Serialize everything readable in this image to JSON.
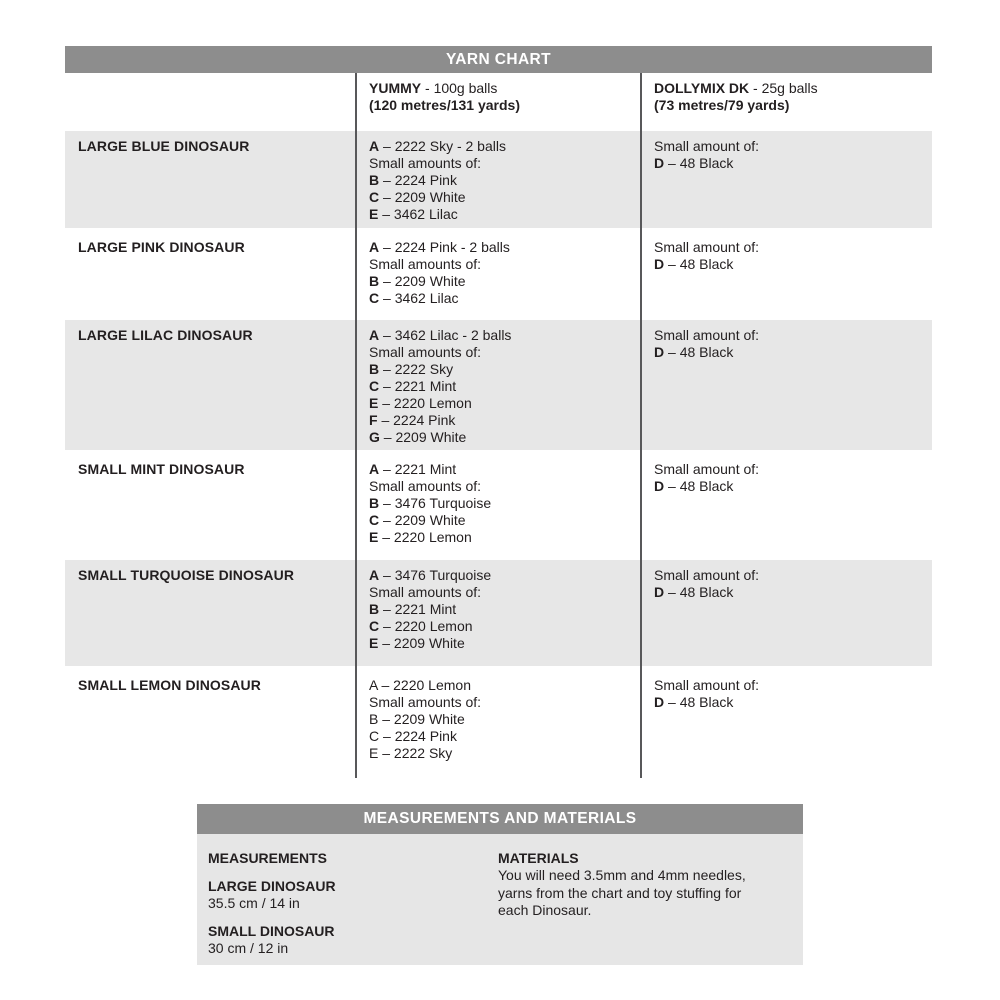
{
  "yarn_chart": {
    "title": "YARN CHART",
    "columns": [
      {
        "brand": "YUMMY",
        "detail": " - 100g balls",
        "meterage": "(120 metres/131 yards)"
      },
      {
        "brand": "DOLLYMIX DK",
        "detail": " - 25g balls",
        "meterage": "(73 metres/79 yards)"
      }
    ],
    "rows": [
      {
        "name": "LARGE BLUE DINOSAUR",
        "yummy": [
          {
            "letter": "A",
            "rest": " – 2222 Sky - 2 balls"
          },
          {
            "letter": "",
            "rest": "Small amounts of:"
          },
          {
            "letter": "B",
            "rest": " – 2224 Pink"
          },
          {
            "letter": "C",
            "rest": " – 2209 White"
          },
          {
            "letter": "E",
            "rest": " – 3462 Lilac"
          }
        ],
        "dollymix": [
          {
            "letter": "",
            "rest": "Small amount of:"
          },
          {
            "letter": "D",
            "rest": " – 48 Black"
          }
        ]
      },
      {
        "name": "LARGE PINK DINOSAUR",
        "yummy": [
          {
            "letter": "A",
            "rest": " – 2224 Pink - 2 balls"
          },
          {
            "letter": "",
            "rest": "Small amounts of:"
          },
          {
            "letter": "B",
            "rest": " – 2209 White"
          },
          {
            "letter": "C",
            "rest": " – 3462 Lilac"
          }
        ],
        "dollymix": [
          {
            "letter": "",
            "rest": "Small amount of:"
          },
          {
            "letter": "D",
            "rest": " – 48 Black"
          }
        ]
      },
      {
        "name": "LARGE LILAC DINOSAUR",
        "yummy": [
          {
            "letter": "A",
            "rest": " – 3462 Lilac - 2 balls"
          },
          {
            "letter": "",
            "rest": "Small amounts of:"
          },
          {
            "letter": "B",
            "rest": " – 2222 Sky"
          },
          {
            "letter": "C",
            "rest": " – 2221 Mint"
          },
          {
            "letter": "E",
            "rest": " – 2220 Lemon"
          },
          {
            "letter": "F",
            "rest": " – 2224 Pink"
          },
          {
            "letter": "G",
            "rest": " – 2209 White"
          }
        ],
        "dollymix": [
          {
            "letter": "",
            "rest": "Small amount of:"
          },
          {
            "letter": "D",
            "rest": " – 48 Black"
          }
        ]
      },
      {
        "name": "SMALL MINT DINOSAUR",
        "yummy": [
          {
            "letter": "A",
            "rest": " – 2221 Mint"
          },
          {
            "letter": "",
            "rest": "Small amounts of:"
          },
          {
            "letter": "B",
            "rest": " – 3476 Turquoise"
          },
          {
            "letter": "C",
            "rest": " – 2209 White"
          },
          {
            "letter": "E",
            "rest": " – 2220 Lemon"
          }
        ],
        "dollymix": [
          {
            "letter": "",
            "rest": "Small amount of:"
          },
          {
            "letter": "D",
            "rest": " – 48 Black"
          }
        ]
      },
      {
        "name": "SMALL TURQUOISE DINOSAUR",
        "yummy": [
          {
            "letter": "A",
            "rest": " – 3476 Turquoise"
          },
          {
            "letter": "",
            "rest": "Small amounts of:"
          },
          {
            "letter": "B",
            "rest": " – 2221 Mint"
          },
          {
            "letter": "C",
            "rest": " – 2220 Lemon"
          },
          {
            "letter": "E",
            "rest": " – 2209 White"
          }
        ],
        "dollymix": [
          {
            "letter": "",
            "rest": "Small amount of:"
          },
          {
            "letter": "D",
            "rest": " – 48 Black"
          }
        ]
      },
      {
        "name": "SMALL LEMON DINOSAUR",
        "yummy": [
          {
            "letter": "A",
            "rest": " – 2220 Lemon"
          },
          {
            "letter": "",
            "rest": "Small amounts of:"
          },
          {
            "letter": "B",
            "rest": " – 2209 White"
          },
          {
            "letter": "C",
            "rest": " – 2224 Pink"
          },
          {
            "letter": "E",
            "rest": " – 2222 Sky"
          }
        ],
        "dollymix": [
          {
            "letter": "",
            "rest": "Small amount of:"
          },
          {
            "letter": "D",
            "rest": " – 48 Black"
          }
        ]
      }
    ]
  },
  "measurements_materials": {
    "title": "MEASUREMENTS AND MATERIALS",
    "measurements": {
      "heading": "MEASUREMENTS",
      "items": [
        {
          "label": "LARGE DINOSAUR",
          "value": "35.5 cm / 14 in"
        },
        {
          "label": "SMALL DINOSAUR",
          "value": "30 cm / 12 in"
        }
      ]
    },
    "materials": {
      "heading": "MATERIALS",
      "text": "You will need 3.5mm and 4mm needles, yarns from the chart and toy stuffing for each Dinosaur."
    }
  },
  "colors": {
    "header_bar": "#8d8d8d",
    "row_shade": "#e7e7e7",
    "panel_shade": "#e6e6e6",
    "divider": "#58585a",
    "text": "#231f20"
  }
}
